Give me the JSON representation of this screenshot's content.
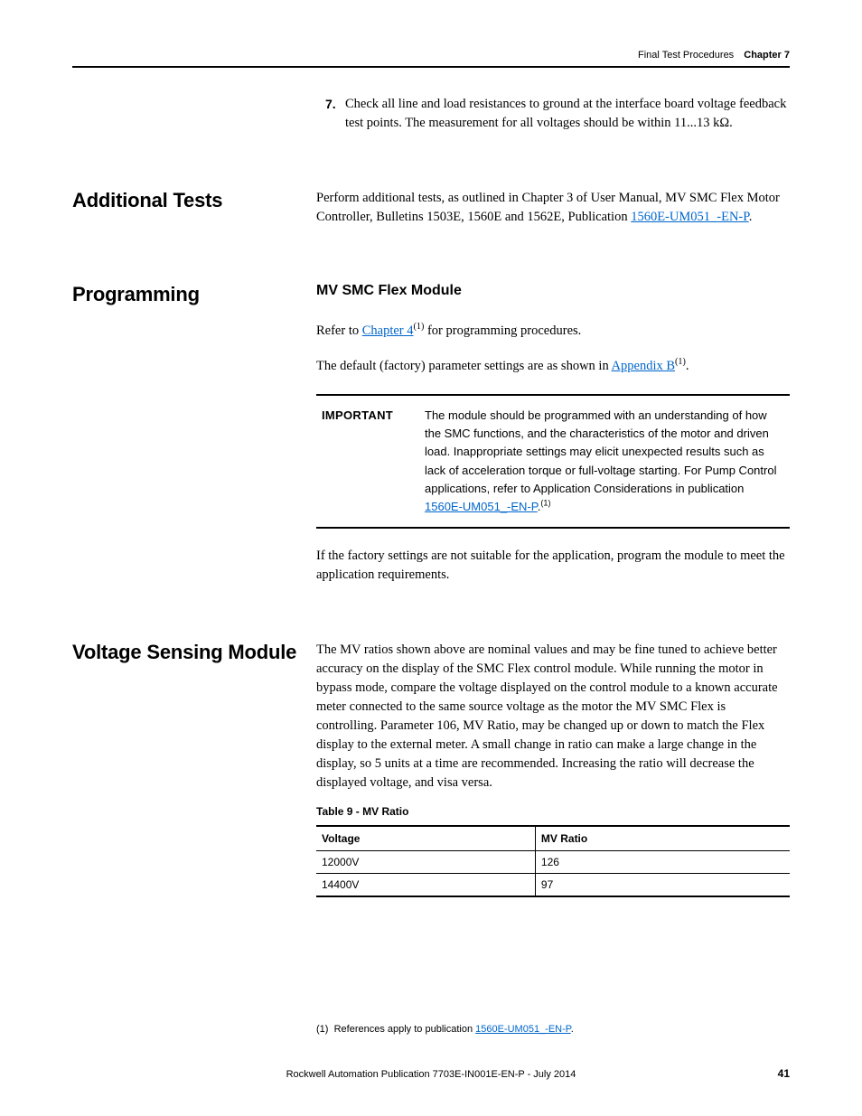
{
  "header": {
    "section": "Final Test Procedures",
    "chapter": "Chapter 7"
  },
  "step7": {
    "number": "7.",
    "text": "Check all line and load resistances to ground at the interface board voltage feedback test points. The measurement for all voltages should be within 11...13 kΩ."
  },
  "additional_tests": {
    "heading": "Additional Tests",
    "body_before": "Perform additional tests, as outlined in Chapter 3 of User Manual, MV SMC Flex Motor Controller, Bulletins 1503E, 1560E and 1562E, Publication ",
    "link": "1560E-UM051_-EN-P",
    "body_after": "."
  },
  "programming": {
    "heading": "Programming",
    "subheading": "MV SMC Flex Module",
    "p1_before": "Refer to ",
    "p1_link": "Chapter 4",
    "p1_sup": "(1)",
    "p1_after": " for programming procedures.",
    "p2_before": "The default (factory) parameter settings are as shown in ",
    "p2_link": "Appendix B",
    "p2_sup": "(1)",
    "p2_after": ".",
    "important_label": "IMPORTANT",
    "important_body_before": "The module should be programmed with an understanding of how the SMC functions, and the characteristics of the motor and driven load. Inappropriate settings may elicit unexpected results such as lack of acceleration torque or full-voltage starting. For Pump Control applications, refer to Application Considerations in publication ",
    "important_link": "1560E-UM051_-EN-P",
    "important_body_after": ".",
    "important_sup": "(1)",
    "p3": "If the factory settings are not suitable for the application, program the module to meet the application requirements."
  },
  "vsm": {
    "heading": "Voltage Sensing Module",
    "body": "The MV ratios shown above are nominal values and may be fine tuned to achieve better accuracy on the display of the SMC Flex control module. While running the motor in bypass mode, compare the voltage displayed on the control module to a known accurate meter connected to the same source voltage as the motor the MV SMC Flex is controlling. Parameter 106, MV Ratio, may be changed up or down to match the Flex display to the external meter. A small change in ratio can make a large change in the display, so 5 units at a time are recommended. Increasing the ratio will decrease the displayed voltage, and visa versa.",
    "table_caption": "Table 9 - MV Ratio",
    "table": {
      "columns": [
        "Voltage",
        "MV Ratio"
      ],
      "rows": [
        [
          "12000V",
          "126"
        ],
        [
          "14400V",
          "97"
        ]
      ]
    }
  },
  "footnote": {
    "marker": "(1)",
    "before": "References apply to publication ",
    "link": "1560E-UM051_-EN-P",
    "after": "."
  },
  "footer": {
    "text": "Rockwell Automation Publication 7703E-IN001E-EN-P - July 2014",
    "page": "41"
  }
}
